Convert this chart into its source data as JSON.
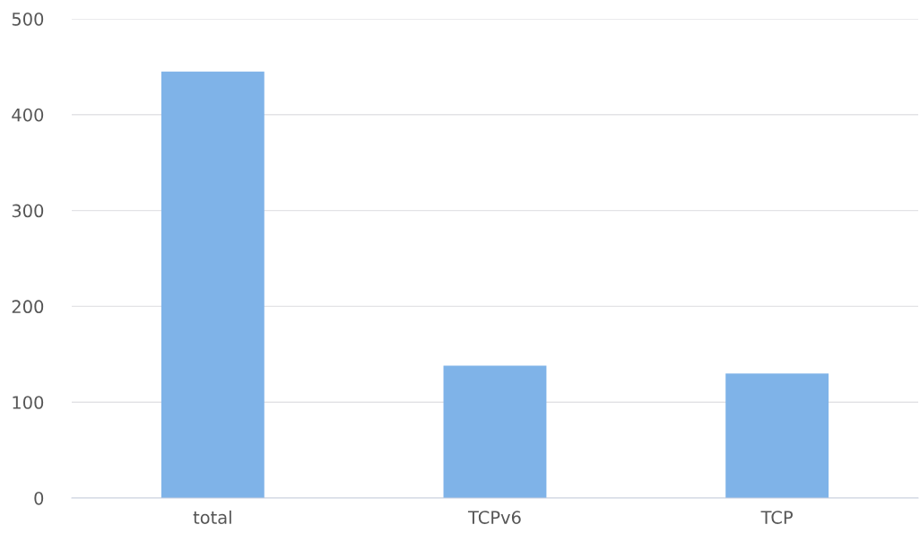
{
  "chart_data": {
    "type": "bar",
    "categories": [
      "total",
      "TCPv6",
      "TCP"
    ],
    "values": [
      445,
      138,
      130
    ],
    "color": "#7fb3e8",
    "ylim": [
      0,
      500
    ],
    "yticks": [
      0,
      100,
      200,
      300,
      400,
      500
    ],
    "grid": "y",
    "legend": false
  }
}
